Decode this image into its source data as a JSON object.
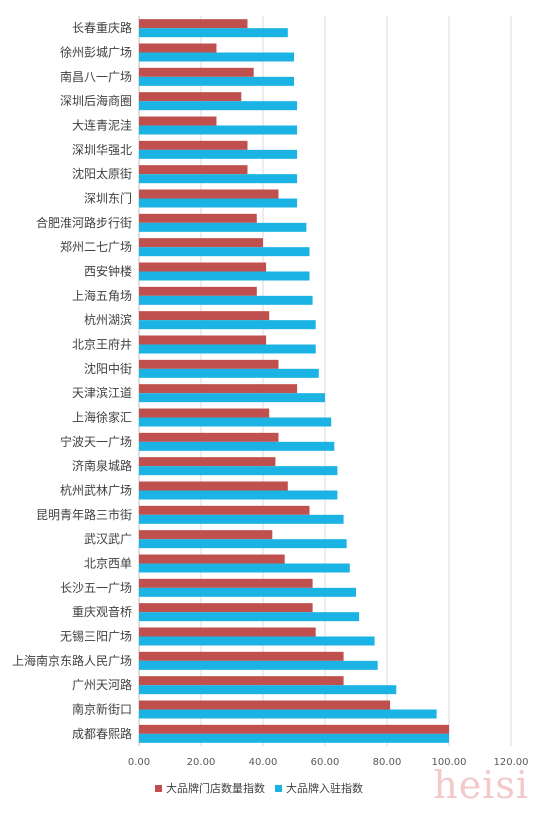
{
  "chart_data": {
    "type": "bar",
    "orientation": "horizontal",
    "categories": [
      "长春重庆路",
      "徐州彭城广场",
      "南昌八一广场",
      "深圳后海商圈",
      "大连青泥洼",
      "深圳华强北",
      "沈阳太原街",
      "深圳东门",
      "合肥淮河路步行街",
      "郑州二七广场",
      "西安钟楼",
      "上海五角场",
      "杭州湖滨",
      "北京王府井",
      "沈阳中街",
      "天津滨江道",
      "上海徐家汇",
      "宁波天一广场",
      "济南泉城路",
      "杭州武林广场",
      "昆明青年路三市街",
      "武汉武广",
      "北京西单",
      "长沙五一广场",
      "重庆观音桥",
      "无锡三阳广场",
      "上海南京东路人民广场",
      "广州天河路",
      "南京新街口",
      "成都春熙路"
    ],
    "series": [
      {
        "name": "大品牌门店数量指数",
        "color": "#c0504d",
        "values": [
          35,
          25,
          37,
          33,
          25,
          35,
          35,
          45,
          38,
          40,
          41,
          38,
          42,
          41,
          45,
          51,
          42,
          45,
          44,
          48,
          55,
          43,
          47,
          56,
          56,
          57,
          66,
          66,
          81,
          100
        ]
      },
      {
        "name": "大品牌入驻指数",
        "color": "#1bb3e4",
        "values": [
          48,
          50,
          50,
          51,
          51,
          51,
          51,
          51,
          54,
          55,
          55,
          56,
          57,
          57,
          58,
          60,
          62,
          63,
          64,
          64,
          66,
          67,
          68,
          70,
          71,
          76,
          77,
          83,
          96,
          100
        ]
      }
    ],
    "xticks": [
      "0.00",
      "20.00",
      "40.00",
      "60.00",
      "80.00",
      "100.00",
      "120.00"
    ],
    "xlim": [
      0,
      120
    ],
    "grid": true,
    "legend_position": "bottom",
    "title": "",
    "xlabel": "",
    "ylabel": ""
  },
  "watermark": "heisi"
}
